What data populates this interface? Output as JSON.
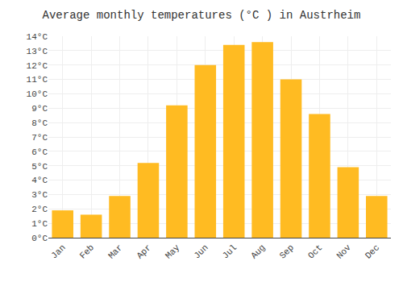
{
  "chart_data": {
    "type": "bar",
    "title": "Average monthly temperatures (°C ) in Austrheim",
    "categories": [
      "Jan",
      "Feb",
      "Mar",
      "Apr",
      "May",
      "Jun",
      "Jul",
      "Aug",
      "Sep",
      "Oct",
      "Nov",
      "Dec"
    ],
    "values": [
      1.9,
      1.6,
      2.9,
      5.2,
      9.2,
      12.0,
      13.4,
      13.6,
      11.0,
      8.6,
      4.9,
      2.9
    ],
    "color": "#FFBB22",
    "ylim": [
      0,
      14
    ],
    "yticks": [
      {
        "value": 0,
        "label": "0°C"
      },
      {
        "value": 1,
        "label": "1°C"
      },
      {
        "value": 2,
        "label": "2°C"
      },
      {
        "value": 3,
        "label": "3°C"
      },
      {
        "value": 4,
        "label": "4°C"
      },
      {
        "value": 5,
        "label": "5°C"
      },
      {
        "value": 6,
        "label": "6°C"
      },
      {
        "value": 7,
        "label": "7°C"
      },
      {
        "value": 8,
        "label": "8°C"
      },
      {
        "value": 9,
        "label": "9°C"
      },
      {
        "value": 10,
        "label": "10°C"
      },
      {
        "value": 11,
        "label": "11°C"
      },
      {
        "value": 12,
        "label": "12°C"
      },
      {
        "value": 13,
        "label": "13°C"
      },
      {
        "value": 14,
        "label": "14°C"
      }
    ],
    "grid": true
  }
}
